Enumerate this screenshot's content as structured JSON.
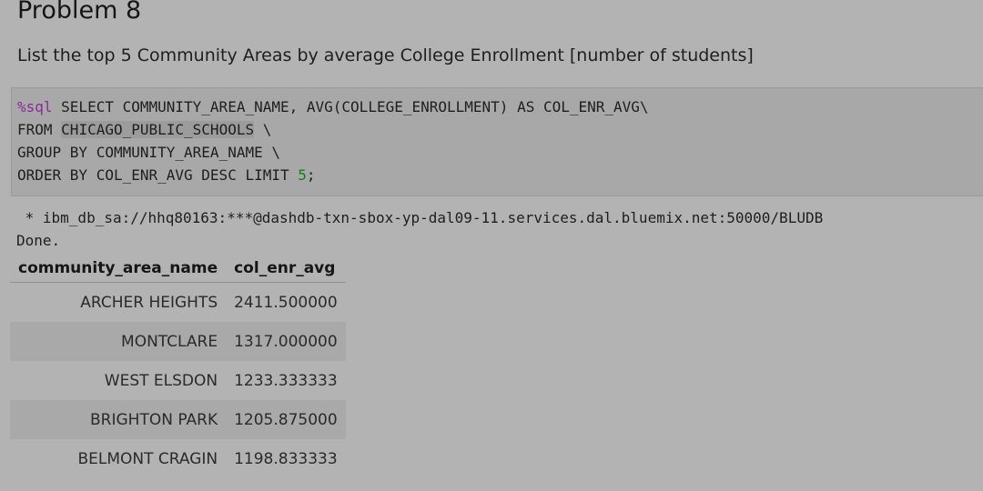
{
  "heading": "Problem 8",
  "description": "List the top 5 Community Areas by average College Enrollment [number of students]",
  "code": {
    "magic": "%sql",
    "line1_rest": " SELECT COMMUNITY_AREA_NAME, AVG(COLLEGE_ENROLLMENT) AS COL_ENR_AVG\\",
    "line2_pre": "FROM ",
    "line2_table": "CHICAGO_PUBLIC_SCHOOLS",
    "line2_post": " \\",
    "line3": "GROUP BY COMMUNITY_AREA_NAME \\",
    "line4_pre": "ORDER BY COL_ENR_AVG DESC LIMIT ",
    "line4_num": "5",
    "line4_post": ";"
  },
  "output": {
    "connection": " * ibm_db_sa://hhq80163:***@dashdb-txn-sbox-yp-dal09-11.services.dal.bluemix.net:50000/BLUDB",
    "status": "Done."
  },
  "table": {
    "headers": [
      "community_area_name",
      "col_enr_avg"
    ],
    "rows": [
      [
        "ARCHER HEIGHTS",
        "2411.500000"
      ],
      [
        "MONTCLARE",
        "1317.000000"
      ],
      [
        "WEST ELSDON",
        "1233.333333"
      ],
      [
        "BRIGHTON PARK",
        "1205.875000"
      ],
      [
        "BELMONT CRAGIN",
        "1198.833333"
      ]
    ]
  },
  "colors": {
    "background": "#b3b3b3",
    "code_background": "#a8a8a8",
    "magic": "#8a2a9c",
    "number": "#1a7a1a"
  }
}
